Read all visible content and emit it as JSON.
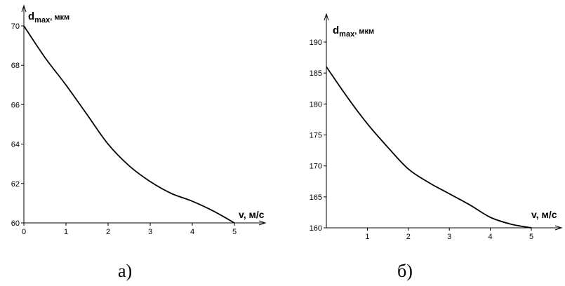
{
  "chart_data": [
    {
      "type": "line",
      "caption": "а)",
      "ylabel_main": "d",
      "ylabel_sub": "max",
      "ylabel_unit": ", мкм",
      "xlabel": "v, м/с",
      "xlim": [
        0,
        5
      ],
      "ylim": [
        60,
        70
      ],
      "xticks": [
        "0",
        "1",
        "2",
        "3",
        "4",
        "5"
      ],
      "yticks": [
        "60",
        "62",
        "64",
        "66",
        "68",
        "70"
      ],
      "x": [
        0,
        0.5,
        1,
        1.5,
        2,
        2.5,
        3,
        3.5,
        4,
        4.5,
        5
      ],
      "y": [
        70,
        68.4,
        67.0,
        65.5,
        64.0,
        62.9,
        62.1,
        61.5,
        61.1,
        60.6,
        60.0
      ]
    },
    {
      "type": "line",
      "caption": "б)",
      "ylabel_main": "d",
      "ylabel_sub": "max",
      "ylabel_unit": ", мкм",
      "xlabel": "v, м/с",
      "xlim": [
        0,
        5
      ],
      "ylim": [
        160,
        190
      ],
      "xticks": [
        "1",
        "2",
        "3",
        "4",
        "5"
      ],
      "yticks": [
        "160",
        "165",
        "170",
        "175",
        "180",
        "185",
        "190"
      ],
      "x": [
        0,
        0.5,
        1,
        1.5,
        2,
        2.5,
        3,
        3.5,
        4,
        4.5,
        5
      ],
      "y": [
        186,
        181.2,
        176.8,
        173.0,
        169.5,
        167.3,
        165.5,
        163.7,
        161.7,
        160.6,
        160.0
      ]
    }
  ]
}
